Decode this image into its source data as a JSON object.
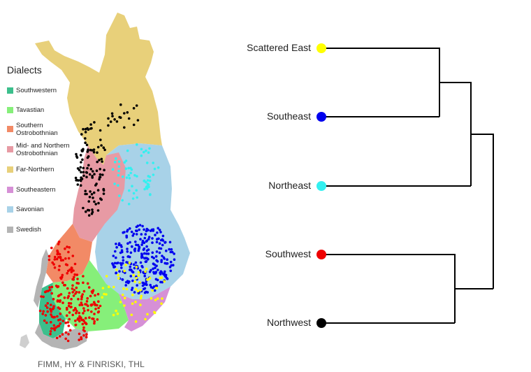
{
  "legend": {
    "title": "Dialects",
    "items": [
      {
        "label": "Southwestern",
        "color": "#3cbf8c"
      },
      {
        "label": "Tavastian",
        "color": "#86ef7a"
      },
      {
        "label": "Southern\nOstrobothnian",
        "color": "#f28a66"
      },
      {
        "label": "Mid- and Northern\nOstrobothnian",
        "color": "#e79aa4"
      },
      {
        "label": "Far-Northern",
        "color": "#e8d07a"
      },
      {
        "label": "Southeastern",
        "color": "#d690d6"
      },
      {
        "label": "Savonian",
        "color": "#a8d2e8"
      },
      {
        "label": "Swedish",
        "color": "#b4b4b4"
      }
    ]
  },
  "credit": "FIMM, HY & FINRISKI, THL",
  "dendrogram": {
    "leaves": [
      {
        "label": "Scattered East",
        "color": "#ffff00"
      },
      {
        "label": "Southeast",
        "color": "#0000ee"
      },
      {
        "label": "Northeast",
        "color": "#33f0f0"
      },
      {
        "label": "Southwest",
        "color": "#ee0000"
      },
      {
        "label": "Northwest",
        "color": "#000000"
      }
    ]
  }
}
